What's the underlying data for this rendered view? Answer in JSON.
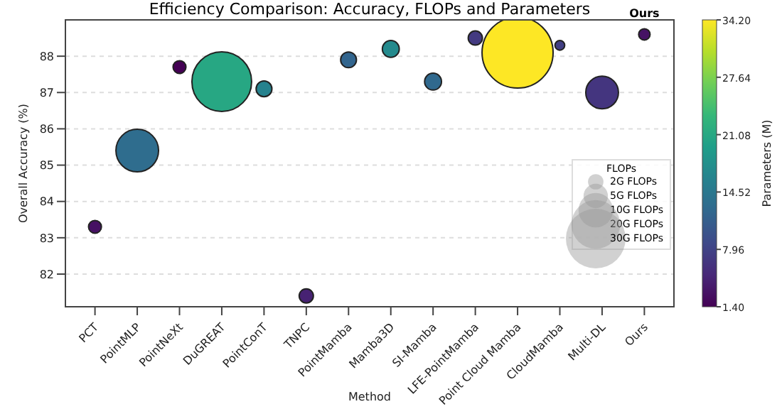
{
  "chart_data": {
    "type": "bubble",
    "title": "Efficiency Comparison: Accuracy, FLOPs and Parameters",
    "xlabel": "Method",
    "ylabel": "Overall Accuracy (%)",
    "clabel": "Parameters (M)",
    "legend_title": "FLOPs",
    "categories": [
      "PCT",
      "PointMLP",
      "PointNeXt",
      "DuGREAT",
      "PointConT",
      "TNPC",
      "PointMamba",
      "Mamba3D",
      "SI-Mamba",
      "LFE-PointMamba",
      "Point Cloud Mamba",
      "CloudMamba",
      "Multi-DL",
      "Ours"
    ],
    "values": [
      83.3,
      85.4,
      87.7,
      87.3,
      87.1,
      81.4,
      87.9,
      88.2,
      87.3,
      88.5,
      88.1,
      88.3,
      87.0,
      88.6
    ],
    "sizes": [
      1.4,
      15.3,
      1.4,
      30,
      2.1,
      1.7,
      2.1,
      2.4,
      2.4,
      1.7,
      42.5,
      0.8,
      9.0,
      1.1
    ],
    "cvalues": [
      2.9,
      13,
      1.4,
      21,
      16,
      4.5,
      12,
      17,
      12.5,
      7,
      34.2,
      7.5,
      6.5,
      3
    ],
    "size_legend": [
      {
        "value": 2,
        "label": "2G FLOPs"
      },
      {
        "value": 5,
        "label": "5G FLOPs"
      },
      {
        "value": 10,
        "label": "10G FLOPs"
      },
      {
        "value": 20,
        "label": "20G FLOPs"
      },
      {
        "value": 30,
        "label": "30G FLOPs"
      }
    ],
    "clim": [
      1.4,
      34.2
    ],
    "cticks": [
      {
        "value": 1.4,
        "label": "1.40"
      },
      7.96,
      14.52,
      21.08,
      27.64,
      {
        "value": 34.2,
        "label": "34.20"
      }
    ],
    "ylim": [
      81.1,
      89.0
    ],
    "yticks": [
      82,
      83,
      84,
      85,
      86,
      87,
      88
    ],
    "grid": "y",
    "annotations": [
      {
        "text": "Ours",
        "x": "Ours",
        "y": 88.6
      }
    ]
  }
}
